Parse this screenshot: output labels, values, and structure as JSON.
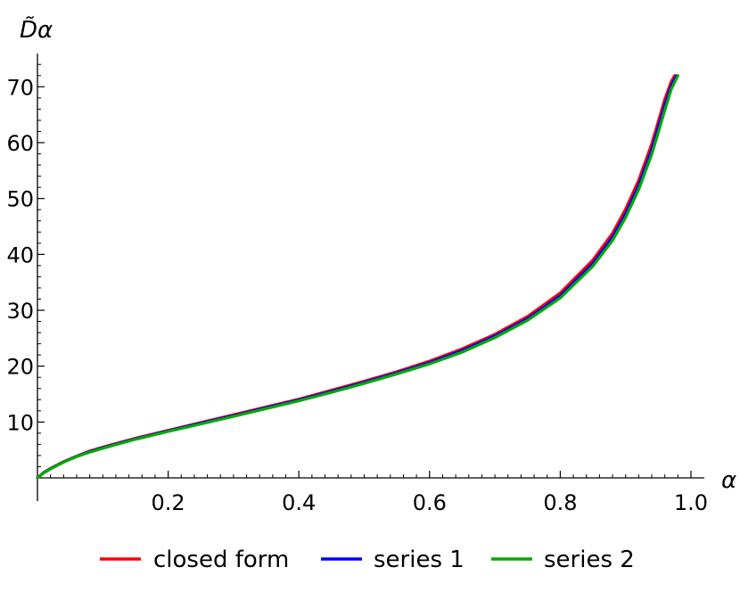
{
  "chart_data": {
    "type": "line",
    "title": "",
    "xlabel": "α",
    "ylabel": "D̃α",
    "xlim": [
      0,
      1.0
    ],
    "ylim": [
      0,
      75
    ],
    "x_ticks": [
      0.2,
      0.4,
      0.6,
      0.8,
      1.0
    ],
    "x_tick_labels": [
      "0.2",
      "0.4",
      "0.6",
      "0.8",
      "1.0"
    ],
    "y_ticks": [
      10,
      20,
      30,
      40,
      50,
      60,
      70
    ],
    "y_tick_labels": [
      "10",
      "20",
      "30",
      "40",
      "50",
      "60",
      "70"
    ],
    "grid": false,
    "legend_position": "bottom",
    "series": [
      {
        "name": "closed form",
        "color": "#ff0000",
        "x": [
          0,
          0.01,
          0.02,
          0.04,
          0.06,
          0.08,
          0.1,
          0.15,
          0.2,
          0.25,
          0.3,
          0.35,
          0.4,
          0.45,
          0.5,
          0.55,
          0.6,
          0.65,
          0.7,
          0.75,
          0.8,
          0.85,
          0.88,
          0.9,
          0.92,
          0.94,
          0.95,
          0.96,
          0.97,
          0.975
        ],
        "y": [
          0,
          1.0,
          1.7,
          2.9,
          3.9,
          4.8,
          5.5,
          7.1,
          8.5,
          9.9,
          11.3,
          12.7,
          14.1,
          15.7,
          17.3,
          19.0,
          20.9,
          23.1,
          25.7,
          28.9,
          33.1,
          39.0,
          43.8,
          48.1,
          53.3,
          59.8,
          63.8,
          67.8,
          71.0,
          72.0
        ]
      },
      {
        "name": "series 1",
        "color": "#0000ff",
        "x": [
          0,
          0.01,
          0.02,
          0.04,
          0.06,
          0.08,
          0.1,
          0.15,
          0.2,
          0.25,
          0.3,
          0.35,
          0.4,
          0.45,
          0.5,
          0.55,
          0.6,
          0.65,
          0.7,
          0.75,
          0.8,
          0.85,
          0.88,
          0.9,
          0.92,
          0.94,
          0.95,
          0.96,
          0.97,
          0.978
        ],
        "y": [
          0,
          0.95,
          1.65,
          2.85,
          3.85,
          4.7,
          5.4,
          7.0,
          8.4,
          9.8,
          11.15,
          12.55,
          13.95,
          15.5,
          17.1,
          18.8,
          20.65,
          22.8,
          25.4,
          28.5,
          32.6,
          38.4,
          43.1,
          47.3,
          52.4,
          58.8,
          62.8,
          66.8,
          70.3,
          72.0
        ]
      },
      {
        "name": "series 2",
        "color": "#00aa00",
        "x": [
          0,
          0.01,
          0.02,
          0.04,
          0.06,
          0.08,
          0.1,
          0.15,
          0.2,
          0.25,
          0.3,
          0.35,
          0.4,
          0.45,
          0.5,
          0.55,
          0.6,
          0.65,
          0.7,
          0.75,
          0.8,
          0.85,
          0.88,
          0.9,
          0.92,
          0.94,
          0.95,
          0.96,
          0.97,
          0.98
        ],
        "y": [
          0,
          0.9,
          1.6,
          2.8,
          3.8,
          4.6,
          5.3,
          6.9,
          8.3,
          9.65,
          11.0,
          12.4,
          13.8,
          15.3,
          16.9,
          18.6,
          20.4,
          22.5,
          25.1,
          28.2,
          32.2,
          37.9,
          42.5,
          46.6,
          51.6,
          57.9,
          61.8,
          65.8,
          69.6,
          72.0
        ]
      }
    ]
  }
}
